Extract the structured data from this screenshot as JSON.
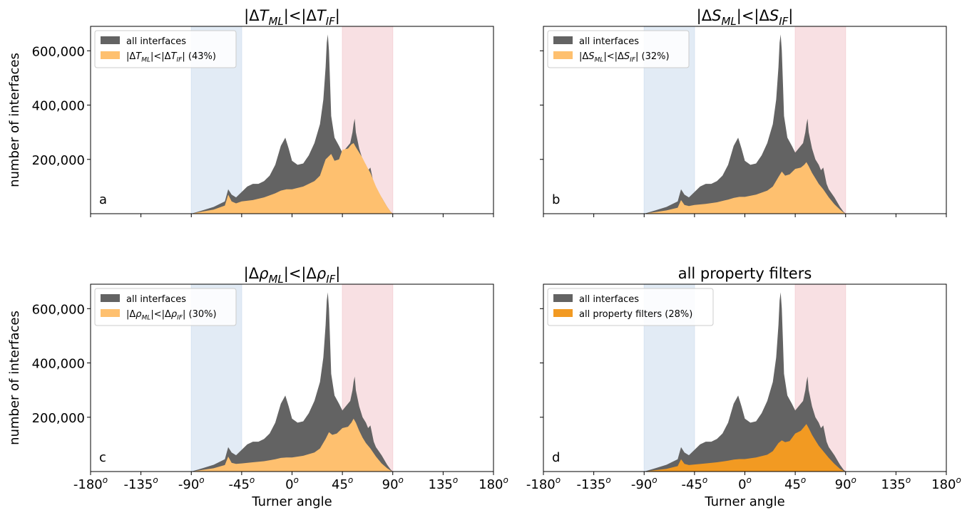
{
  "colors": {
    "all": "#636363",
    "light": "#fec06f",
    "dark": "#f29a22",
    "blue_band": "#d6e3f1",
    "red_band": "#f5d3d7"
  },
  "chart_data": [
    {
      "type": "area",
      "title": "|ΔT_ML|<|ΔT_IF|",
      "panel_label": "a",
      "xlabel": "",
      "ylabel": "number of interfaces",
      "xlim": [
        -180,
        180
      ],
      "ylim": [
        0,
        690000
      ],
      "xticks": [
        -180,
        -135,
        -90,
        -45,
        0,
        45,
        90,
        135,
        180
      ],
      "yticks": [
        "200,000",
        "400,000",
        "600,000"
      ],
      "ytick_values": [
        200000,
        400000,
        600000
      ],
      "xtick_labels_shown": false,
      "ytick_labels_shown": true,
      "shaded_bands": [
        {
          "color": "blue",
          "from": -90,
          "to": -45
        },
        {
          "color": "red",
          "from": 45,
          "to": 90
        }
      ],
      "legend_position": "upper left",
      "series": [
        {
          "name": "all interfaces",
          "color": "all",
          "x": [
            -90,
            -80,
            -70,
            -60,
            -57,
            -54,
            -50,
            -45,
            -40,
            -35,
            -30,
            -25,
            -20,
            -15,
            -10,
            -6,
            -3,
            0,
            5,
            10,
            15,
            20,
            25,
            28,
            30,
            31,
            32,
            33,
            34,
            35,
            38,
            42,
            45,
            48,
            52,
            54,
            55,
            56,
            57,
            60,
            63,
            66,
            68,
            70,
            73,
            75,
            80,
            85,
            88,
            90
          ],
          "values": [
            0,
            12000,
            25000,
            45000,
            90000,
            70000,
            60000,
            80000,
            100000,
            110000,
            110000,
            120000,
            140000,
            180000,
            250000,
            280000,
            240000,
            195000,
            180000,
            185000,
            215000,
            260000,
            330000,
            420000,
            540000,
            630000,
            660000,
            600000,
            480000,
            360000,
            280000,
            250000,
            225000,
            240000,
            260000,
            300000,
            330000,
            350000,
            300000,
            240000,
            200000,
            180000,
            160000,
            170000,
            110000,
            90000,
            60000,
            25000,
            8000,
            0
          ]
        },
        {
          "name": "|ΔT_ML|<|ΔT_IF| (43%)",
          "color": "light",
          "x": [
            -90,
            -80,
            -70,
            -60,
            -57,
            -54,
            -50,
            -45,
            -35,
            -25,
            -15,
            -10,
            -5,
            0,
            10,
            20,
            25,
            30,
            35,
            38,
            42,
            45,
            50,
            53,
            55,
            57,
            60,
            63,
            66,
            70,
            75,
            80,
            85,
            88,
            90
          ],
          "values": [
            0,
            8000,
            15000,
            30000,
            70000,
            45000,
            38000,
            45000,
            50000,
            60000,
            75000,
            85000,
            90000,
            90000,
            100000,
            120000,
            140000,
            200000,
            220000,
            195000,
            200000,
            235000,
            240000,
            255000,
            260000,
            245000,
            225000,
            205000,
            180000,
            150000,
            100000,
            60000,
            25000,
            8000,
            0
          ]
        }
      ]
    },
    {
      "type": "area",
      "title": "|ΔS_ML|<|ΔS_IF|",
      "panel_label": "b",
      "xlabel": "",
      "ylabel": "",
      "xlim": [
        -180,
        180
      ],
      "ylim": [
        0,
        690000
      ],
      "xticks": [
        -180,
        -135,
        -90,
        -45,
        0,
        45,
        90,
        135,
        180
      ],
      "ytick_values": [
        200000,
        400000,
        600000
      ],
      "xtick_labels_shown": false,
      "ytick_labels_shown": false,
      "shaded_bands": [
        {
          "color": "blue",
          "from": -90,
          "to": -45
        },
        {
          "color": "red",
          "from": 45,
          "to": 90
        }
      ],
      "legend_position": "upper left",
      "series": [
        {
          "name": "all interfaces",
          "color": "all",
          "x": [
            -90,
            -80,
            -70,
            -60,
            -57,
            -54,
            -50,
            -45,
            -40,
            -35,
            -30,
            -25,
            -20,
            -15,
            -10,
            -6,
            -3,
            0,
            5,
            10,
            15,
            20,
            25,
            28,
            30,
            31,
            32,
            33,
            34,
            35,
            38,
            42,
            45,
            48,
            52,
            54,
            55,
            56,
            57,
            60,
            63,
            66,
            68,
            70,
            73,
            75,
            80,
            85,
            88,
            90
          ],
          "values": [
            0,
            12000,
            25000,
            45000,
            90000,
            70000,
            60000,
            80000,
            100000,
            110000,
            110000,
            120000,
            140000,
            180000,
            250000,
            280000,
            240000,
            195000,
            180000,
            185000,
            215000,
            260000,
            330000,
            420000,
            540000,
            630000,
            660000,
            600000,
            480000,
            360000,
            280000,
            250000,
            225000,
            240000,
            260000,
            300000,
            330000,
            350000,
            300000,
            240000,
            200000,
            180000,
            160000,
            170000,
            110000,
            90000,
            60000,
            25000,
            8000,
            0
          ]
        },
        {
          "name": "|ΔS_ML|<|ΔS_IF| (32%)",
          "color": "light",
          "x": [
            -90,
            -80,
            -70,
            -60,
            -57,
            -54,
            -50,
            -45,
            -35,
            -25,
            -15,
            -10,
            -5,
            0,
            10,
            20,
            25,
            30,
            33,
            36,
            40,
            45,
            50,
            53,
            55,
            57,
            60,
            63,
            66,
            70,
            75,
            80,
            85,
            88,
            90
          ],
          "values": [
            0,
            6000,
            12000,
            22000,
            50000,
            32000,
            28000,
            32000,
            36000,
            42000,
            52000,
            58000,
            62000,
            62000,
            70000,
            85000,
            100000,
            135000,
            155000,
            140000,
            145000,
            165000,
            170000,
            180000,
            190000,
            175000,
            150000,
            130000,
            110000,
            90000,
            60000,
            35000,
            15000,
            5000,
            0
          ]
        }
      ]
    },
    {
      "type": "area",
      "title": "|Δρ_ML|<|Δρ_IF|",
      "panel_label": "c",
      "xlabel": "Turner angle",
      "ylabel": "number of interfaces",
      "xlim": [
        -180,
        180
      ],
      "ylim": [
        0,
        690000
      ],
      "xticks": [
        -180,
        -135,
        -90,
        -45,
        0,
        45,
        90,
        135,
        180
      ],
      "xtick_labels": [
        "-180",
        "-135",
        "-90",
        "-45",
        "0",
        "45",
        "90",
        "135",
        "180"
      ],
      "xtick_superscript": "o",
      "yticks": [
        "200,000",
        "400,000",
        "600,000"
      ],
      "ytick_values": [
        200000,
        400000,
        600000
      ],
      "xtick_labels_shown": true,
      "ytick_labels_shown": true,
      "shaded_bands": [
        {
          "color": "blue",
          "from": -90,
          "to": -45
        },
        {
          "color": "red",
          "from": 45,
          "to": 90
        }
      ],
      "legend_position": "upper left",
      "series": [
        {
          "name": "all interfaces",
          "color": "all",
          "x": [
            -90,
            -80,
            -70,
            -60,
            -57,
            -54,
            -50,
            -45,
            -40,
            -35,
            -30,
            -25,
            -20,
            -15,
            -10,
            -6,
            -3,
            0,
            5,
            10,
            15,
            20,
            25,
            28,
            30,
            31,
            32,
            33,
            34,
            35,
            38,
            42,
            45,
            48,
            52,
            54,
            55,
            56,
            57,
            60,
            63,
            66,
            68,
            70,
            73,
            75,
            80,
            85,
            88,
            90
          ],
          "values": [
            0,
            12000,
            25000,
            45000,
            90000,
            70000,
            60000,
            80000,
            100000,
            110000,
            110000,
            120000,
            140000,
            180000,
            250000,
            280000,
            240000,
            195000,
            180000,
            185000,
            215000,
            260000,
            330000,
            420000,
            540000,
            630000,
            660000,
            600000,
            480000,
            360000,
            280000,
            250000,
            225000,
            240000,
            260000,
            300000,
            330000,
            350000,
            300000,
            240000,
            200000,
            180000,
            160000,
            170000,
            110000,
            90000,
            60000,
            25000,
            8000,
            0
          ]
        },
        {
          "name": "|Δρ_ML|<|Δρ_IF| (30%)",
          "color": "light",
          "x": [
            -90,
            -80,
            -70,
            -60,
            -57,
            -54,
            -50,
            -45,
            -35,
            -25,
            -15,
            -10,
            -5,
            0,
            10,
            20,
            25,
            30,
            33,
            36,
            40,
            45,
            50,
            53,
            55,
            57,
            60,
            63,
            66,
            70,
            75,
            80,
            85,
            88,
            90
          ],
          "values": [
            0,
            6000,
            12000,
            24000,
            55000,
            32000,
            28000,
            30000,
            34000,
            38000,
            45000,
            50000,
            52000,
            52000,
            58000,
            70000,
            85000,
            120000,
            145000,
            135000,
            140000,
            160000,
            165000,
            180000,
            195000,
            180000,
            150000,
            125000,
            105000,
            85000,
            55000,
            30000,
            12000,
            4000,
            0
          ]
        }
      ]
    },
    {
      "type": "area",
      "title": "all property filters",
      "panel_label": "d",
      "xlabel": "Turner angle",
      "ylabel": "",
      "xlim": [
        -180,
        180
      ],
      "ylim": [
        0,
        690000
      ],
      "xticks": [
        -180,
        -135,
        -90,
        -45,
        0,
        45,
        90,
        135,
        180
      ],
      "xtick_labels": [
        "-180",
        "-135",
        "-90",
        "-45",
        "0",
        "45",
        "90",
        "135",
        "180"
      ],
      "xtick_superscript": "o",
      "ytick_values": [
        200000,
        400000,
        600000
      ],
      "xtick_labels_shown": true,
      "ytick_labels_shown": false,
      "shaded_bands": [
        {
          "color": "blue",
          "from": -90,
          "to": -45
        },
        {
          "color": "red",
          "from": 45,
          "to": 90
        }
      ],
      "legend_position": "upper left",
      "series": [
        {
          "name": "all interfaces",
          "color": "all",
          "x": [
            -90,
            -80,
            -70,
            -60,
            -57,
            -54,
            -50,
            -45,
            -40,
            -35,
            -30,
            -25,
            -20,
            -15,
            -10,
            -6,
            -3,
            0,
            5,
            10,
            15,
            20,
            25,
            28,
            30,
            31,
            32,
            33,
            34,
            35,
            38,
            42,
            45,
            48,
            52,
            54,
            55,
            56,
            57,
            60,
            63,
            66,
            68,
            70,
            73,
            75,
            80,
            85,
            88,
            90
          ],
          "values": [
            0,
            12000,
            25000,
            45000,
            90000,
            70000,
            60000,
            80000,
            100000,
            110000,
            110000,
            120000,
            140000,
            180000,
            250000,
            280000,
            240000,
            195000,
            180000,
            185000,
            215000,
            260000,
            330000,
            420000,
            540000,
            630000,
            660000,
            600000,
            480000,
            360000,
            280000,
            250000,
            225000,
            240000,
            260000,
            300000,
            330000,
            350000,
            300000,
            240000,
            200000,
            180000,
            160000,
            170000,
            110000,
            90000,
            60000,
            25000,
            8000,
            0
          ]
        },
        {
          "name": "all property filters (28%)",
          "color": "dark",
          "x": [
            -90,
            -80,
            -70,
            -60,
            -57,
            -54,
            -50,
            -45,
            -35,
            -25,
            -15,
            -10,
            -5,
            0,
            10,
            20,
            25,
            30,
            33,
            36,
            40,
            45,
            50,
            53,
            55,
            57,
            60,
            63,
            66,
            70,
            75,
            80,
            85,
            88,
            90
          ],
          "values": [
            0,
            5000,
            10000,
            20000,
            45000,
            28000,
            24000,
            26000,
            30000,
            34000,
            40000,
            44000,
            46000,
            46000,
            52000,
            62000,
            75000,
            105000,
            115000,
            108000,
            112000,
            140000,
            150000,
            165000,
            175000,
            160000,
            135000,
            115000,
            95000,
            75000,
            50000,
            28000,
            10000,
            3000,
            0
          ]
        }
      ]
    }
  ]
}
